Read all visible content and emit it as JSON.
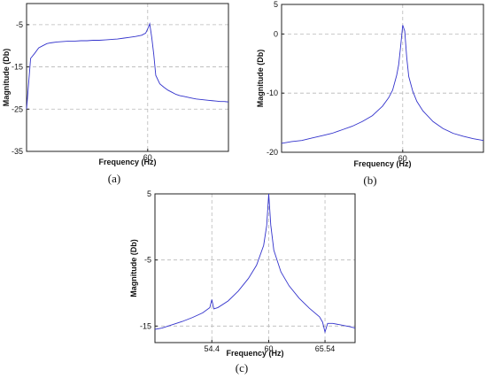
{
  "chart_data": [
    {
      "type": "line",
      "panel_label": "(a)",
      "xlabel": "Frequency (Hz)",
      "ylabel": "Magnitude (Db)",
      "xlim": [
        0,
        100
      ],
      "ylim": [
        -35,
        0
      ],
      "xticks": [
        60
      ],
      "xtick_labels": [
        "60"
      ],
      "yticks": [
        -5,
        -15,
        -25,
        -35
      ],
      "ytick_labels": [
        "-5",
        "-15",
        "-25",
        "-35"
      ],
      "grid": true,
      "series_color": "#3333cc",
      "series": [
        {
          "x": [
            0,
            2,
            4,
            6,
            8,
            10,
            12,
            15,
            18,
            21,
            24,
            27,
            30,
            33,
            36,
            39,
            42,
            45,
            48,
            51,
            54,
            57,
            59,
            60,
            61,
            62,
            63,
            64,
            66,
            68,
            70,
            72,
            74,
            76,
            78,
            80,
            82,
            84,
            86,
            88,
            90,
            92,
            94,
            96,
            98,
            100
          ],
          "y": [
            -25,
            -13,
            -11.8,
            -10.5,
            -10,
            -9.5,
            -9.3,
            -9.1,
            -9.0,
            -8.9,
            -8.9,
            -8.8,
            -8.8,
            -8.7,
            -8.7,
            -8.6,
            -8.5,
            -8.4,
            -8.2,
            -8.0,
            -7.8,
            -7.5,
            -7.0,
            -6.0,
            -4.8,
            -8,
            -12,
            -17,
            -19,
            -19.8,
            -20.5,
            -21,
            -21.5,
            -21.8,
            -22,
            -22.2,
            -22.4,
            -22.6,
            -22.7,
            -22.8,
            -22.9,
            -23,
            -23.1,
            -23.2,
            -23.2,
            -23.3
          ]
        }
      ]
    },
    {
      "type": "line",
      "panel_label": "(b)",
      "xlabel": "Frequency (Hz)",
      "ylabel": "Magnitude (Db)",
      "xlim": [
        0,
        100
      ],
      "ylim": [
        -20,
        5
      ],
      "xticks": [
        60
      ],
      "xtick_labels": [
        "60"
      ],
      "yticks": [
        5,
        0,
        -10,
        -20
      ],
      "ytick_labels": [
        "5",
        "0",
        "-10",
        "-20"
      ],
      "grid": true,
      "series_color": "#3333cc",
      "series": [
        {
          "x": [
            0,
            5,
            10,
            15,
            20,
            25,
            30,
            35,
            40,
            45,
            50,
            53,
            55,
            57,
            58,
            59,
            60,
            61,
            62,
            63,
            65,
            67,
            70,
            75,
            80,
            85,
            90,
            95,
            100
          ],
          "y": [
            -18.5,
            -18.2,
            -18,
            -17.6,
            -17.2,
            -16.8,
            -16.2,
            -15.6,
            -14.8,
            -13.8,
            -12.2,
            -10.8,
            -9.5,
            -7,
            -5.2,
            -2,
            1.5,
            0.5,
            -4,
            -7.2,
            -9.7,
            -11.4,
            -13,
            -14.8,
            -16,
            -16.8,
            -17.3,
            -17.7,
            -18
          ]
        }
      ]
    },
    {
      "type": "line",
      "panel_label": "(c)",
      "xlabel": "Frequency (Hz)",
      "ylabel": "Magnitude (Db)",
      "xlim": [
        48.8,
        68.5
      ],
      "ylim": [
        -17.5,
        5
      ],
      "xticks": [
        54.4,
        60,
        65.54
      ],
      "xtick_labels": [
        "54.4",
        "60",
        "65.54"
      ],
      "yticks": [
        5,
        -5,
        -15
      ],
      "ytick_labels": [
        "5",
        "-5",
        "-15"
      ],
      "grid": true,
      "series_color": "#3333cc",
      "series": [
        {
          "x": [
            48.8,
            49.5,
            50.5,
            51.5,
            52.5,
            53.5,
            54.2,
            54.4,
            54.6,
            55,
            56,
            57,
            58,
            58.8,
            59.5,
            59.8,
            60,
            60.2,
            60.5,
            61.2,
            62,
            63,
            64,
            65,
            65.3,
            65.54,
            65.8,
            66.3,
            67,
            68,
            68.5
          ],
          "y": [
            -15.5,
            -15.3,
            -14.8,
            -14.3,
            -13.7,
            -13,
            -12.2,
            -11,
            -12.4,
            -12.2,
            -11.2,
            -9.7,
            -7.8,
            -5.8,
            -2.8,
            0.2,
            5,
            0.3,
            -3.5,
            -6.8,
            -8.9,
            -10.8,
            -12.3,
            -13.6,
            -14.4,
            -15.9,
            -14.6,
            -14.6,
            -14.8,
            -15.1,
            -15.3
          ]
        }
      ]
    }
  ]
}
